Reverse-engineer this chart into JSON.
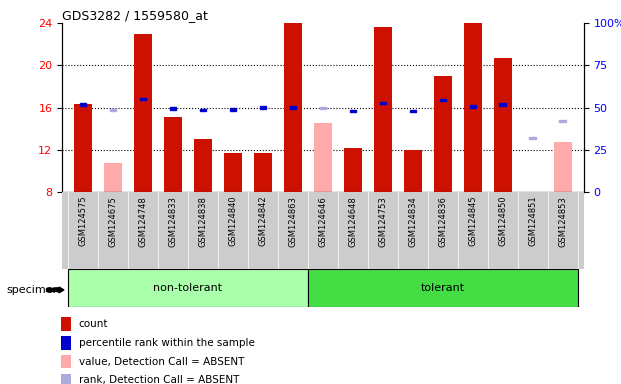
{
  "title": "GDS3282 / 1559580_at",
  "specimens": [
    "GSM124575",
    "GSM124675",
    "GSM124748",
    "GSM124833",
    "GSM124838",
    "GSM124840",
    "GSM124842",
    "GSM124863",
    "GSM124646",
    "GSM124648",
    "GSM124753",
    "GSM124834",
    "GSM124836",
    "GSM124845",
    "GSM124850",
    "GSM124851",
    "GSM124853"
  ],
  "groups": [
    {
      "label": "non-tolerant",
      "start": 0,
      "end": 7,
      "color": "#aaffaa"
    },
    {
      "label": "tolerant",
      "start": 8,
      "end": 16,
      "color": "#44dd44"
    }
  ],
  "ylim": [
    8,
    24
  ],
  "yticks_left": [
    8,
    12,
    16,
    20,
    24
  ],
  "yticks_right": [
    0,
    25,
    50,
    75,
    100
  ],
  "yticks_right_labels": [
    "0",
    "25",
    "50",
    "75",
    "100%"
  ],
  "red_bars": [
    16.3,
    null,
    23.0,
    15.1,
    13.0,
    11.7,
    11.7,
    24.0,
    null,
    12.2,
    23.6,
    12.0,
    19.0,
    24.0,
    20.7,
    null,
    null
  ],
  "pink_bars": [
    null,
    10.7,
    null,
    null,
    null,
    null,
    null,
    null,
    14.5,
    null,
    null,
    null,
    null,
    null,
    null,
    null,
    12.7
  ],
  "blue_squares": [
    16.3,
    null,
    16.8,
    15.9,
    15.75,
    15.8,
    16.0,
    16.0,
    null,
    15.7,
    16.4,
    15.7,
    16.7,
    16.1,
    16.3,
    null,
    null
  ],
  "light_blue_squares": [
    null,
    15.75,
    null,
    null,
    null,
    null,
    null,
    null,
    15.95,
    null,
    null,
    null,
    null,
    null,
    null,
    13.1,
    14.7
  ],
  "bar_bottom": 8,
  "bar_color_red": "#cc1100",
  "bar_color_pink": "#ffaaaa",
  "square_color_blue": "#0000cc",
  "square_color_lightblue": "#aaaadd",
  "bg_color": "#ffffff",
  "figsize": [
    6.21,
    3.84
  ],
  "dpi": 100
}
